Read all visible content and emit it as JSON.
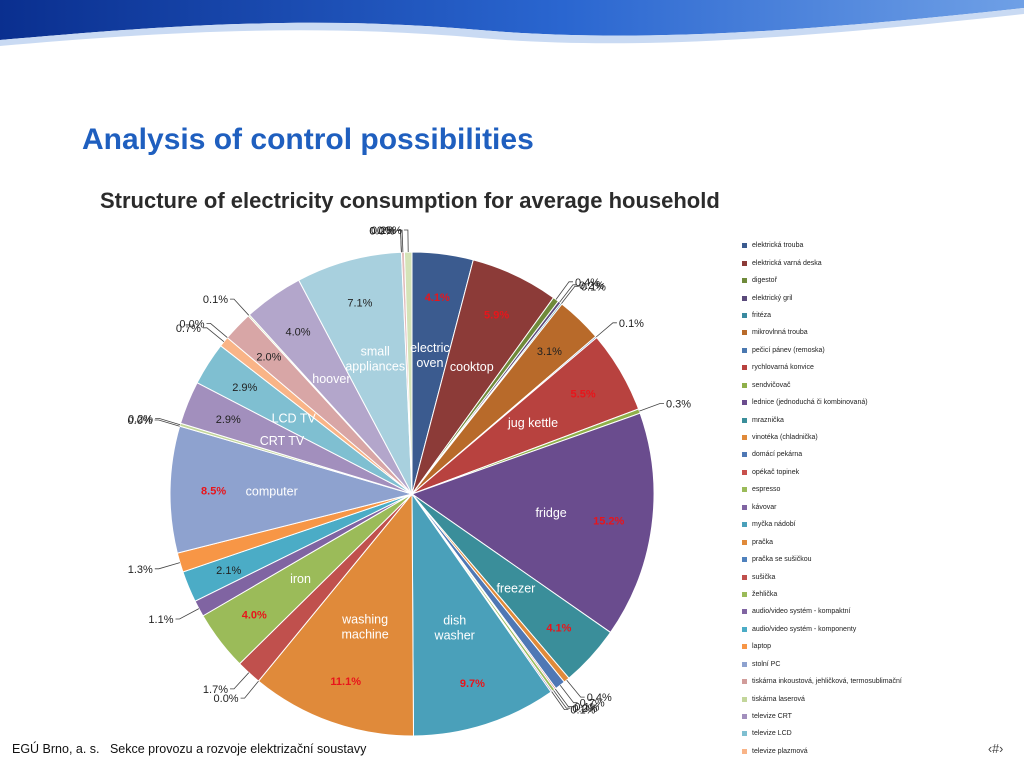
{
  "slide": {
    "title": "Analysis of control possibilities",
    "footer": "EGÚ Brno, a. s.   Sekce provozu a rozvoje elektrizační soustavy",
    "page_number": "‹#›"
  },
  "chart_data": {
    "type": "pie",
    "title": "Structure of electricity consumption for average household",
    "legend_position": "right",
    "label_colors": {
      "normal": "#222222",
      "highlight": "#e8151b",
      "inside": "#ffffff"
    },
    "slices": [
      {
        "legend": "elektrická trouba",
        "value": 4.1,
        "label": "4.1%",
        "highlight": true,
        "name": "electric oven",
        "color": "#3b5b8f"
      },
      {
        "legend": "elektrická varná deska",
        "value": 5.9,
        "label": "5.9%",
        "highlight": true,
        "name": "cooktop",
        "color": "#8c3b38"
      },
      {
        "legend": "digestoř",
        "value": 0.4,
        "label": "0.4%",
        "color": "#6f8a3a"
      },
      {
        "legend": "elektrický gril",
        "value": 0.2,
        "label": "0.2%",
        "color": "#5a4a7a"
      },
      {
        "legend": "fritéza",
        "value": 0.1,
        "label": "0.1%",
        "color": "#3a8aa0"
      },
      {
        "legend": "mikrovlnná trouba",
        "value": 3.1,
        "label": "3.1%",
        "name": "",
        "color": "#b86a2a"
      },
      {
        "legend": "pečicí pánev (remoska)",
        "value": 0.1,
        "label": "0.1%",
        "color": "#4a78b0"
      },
      {
        "legend": "rychlovarná konvice",
        "value": 5.5,
        "label": "5.5%",
        "highlight": true,
        "name": "jug kettle",
        "color": "#b8423f"
      },
      {
        "legend": "sendvičovač",
        "value": 0.3,
        "label": "0.3%",
        "color": "#8fb04a"
      },
      {
        "legend": "lednice (jednoduchá  či kombinovaná)",
        "value": 15.2,
        "label": "15.2%",
        "highlight": true,
        "name": "fridge",
        "color": "#6a4c8e"
      },
      {
        "legend": "mraznička",
        "value": 4.1,
        "label": "4.1%",
        "highlight": true,
        "name": "freezer",
        "color": "#3a8e9a"
      },
      {
        "legend": "vinotéka (chladnička)",
        "value": 0.4,
        "label": "0.4%",
        "color": "#e08a3a"
      },
      {
        "legend": "domácí pekárna",
        "value": 0.7,
        "label": "0.7%",
        "color": "#4f78b5"
      },
      {
        "legend": "opékač topinek",
        "value": 0.1,
        "label": "0.1%",
        "color": "#c8504c"
      },
      {
        "legend": "espresso",
        "value": 0.2,
        "label": "0.2%",
        "color": "#9bbb59"
      },
      {
        "legend": "kávovar",
        "value": 0.1,
        "label": "0.1%",
        "color": "#8064a2"
      },
      {
        "legend": "myčka nádobí",
        "value": 9.7,
        "label": "9.7%",
        "highlight": true,
        "name": "dish washer",
        "color": "#4aa0ba"
      },
      {
        "legend": "pračka",
        "value": 11.1,
        "label": "11.1%",
        "highlight": true,
        "name": "washing machine",
        "color": "#e08a3a"
      },
      {
        "legend": "pračka se sušičkou",
        "value": 0.0,
        "label": "0.0%",
        "color": "#4f81bd"
      },
      {
        "legend": "sušička",
        "value": 1.7,
        "label": "1.7%",
        "color": "#c0504d"
      },
      {
        "legend": "žehlička",
        "value": 4.0,
        "label": "4.0%",
        "highlight": true,
        "name": "iron",
        "color": "#9bbb59"
      },
      {
        "legend": "audio/video systém - kompaktní",
        "value": 1.1,
        "label": "1.1%",
        "color": "#8064a2"
      },
      {
        "legend": "audio/video systém - komponenty",
        "value": 2.1,
        "label": "2.1%",
        "color": "#4bacc6"
      },
      {
        "legend": "laptop",
        "value": 1.3,
        "label": "1.3%",
        "color": "#f79646"
      },
      {
        "legend": "stolní PC",
        "value": 8.5,
        "label": "8.5%",
        "highlight": true,
        "name": "computer",
        "color": "#8ea2cf"
      },
      {
        "legend": "tiskárna inkoustová, jehličková, termosublimační",
        "value": 0.0,
        "label": "0.0%",
        "color": "#d19c9a"
      },
      {
        "legend": "tiskárna laserová",
        "value": 0.2,
        "label": "0.2%",
        "color": "#c3d69b"
      },
      {
        "legend": "televize CRT",
        "value": 2.9,
        "label": "2.9%",
        "name": "CRT TV",
        "color": "#a28fbd"
      },
      {
        "legend": "televize LCD",
        "value": 2.9,
        "label": "2.9%",
        "name": "LCD TV",
        "color": "#7fbfd1"
      },
      {
        "legend": "televize plazmová",
        "value": 0.7,
        "label": "0.7%",
        "color": "#f9b487"
      },
      {
        "legend": "",
        "value": 0.0,
        "label": "0.0%",
        "color": "#a6bde0"
      },
      {
        "legend": "",
        "value": 2.0,
        "label": "2.0%",
        "color": "#d8a6a6"
      },
      {
        "legend": "",
        "value": 0.1,
        "label": "0.1%",
        "color": "#c6da9f"
      },
      {
        "legend": "",
        "value": 4.0,
        "label": "4.0%",
        "name": "hoover",
        "color": "#b3a6cb"
      },
      {
        "legend": "",
        "value": 7.1,
        "label": "7.1%",
        "name": "small appliances",
        "color": "#a8d0de"
      },
      {
        "legend": "",
        "value": 0.0,
        "label": "0.0%",
        "color": "#fbc9a4"
      },
      {
        "legend": "",
        "value": 0.0,
        "label": "0.0%",
        "color": "#bcc8e2"
      },
      {
        "legend": "",
        "value": 0.2,
        "label": "0.2%",
        "color": "#e2bcbc"
      },
      {
        "legend": "",
        "value": 0.5,
        "label": "0.5%",
        "color": "#d4e3b8"
      }
    ]
  }
}
